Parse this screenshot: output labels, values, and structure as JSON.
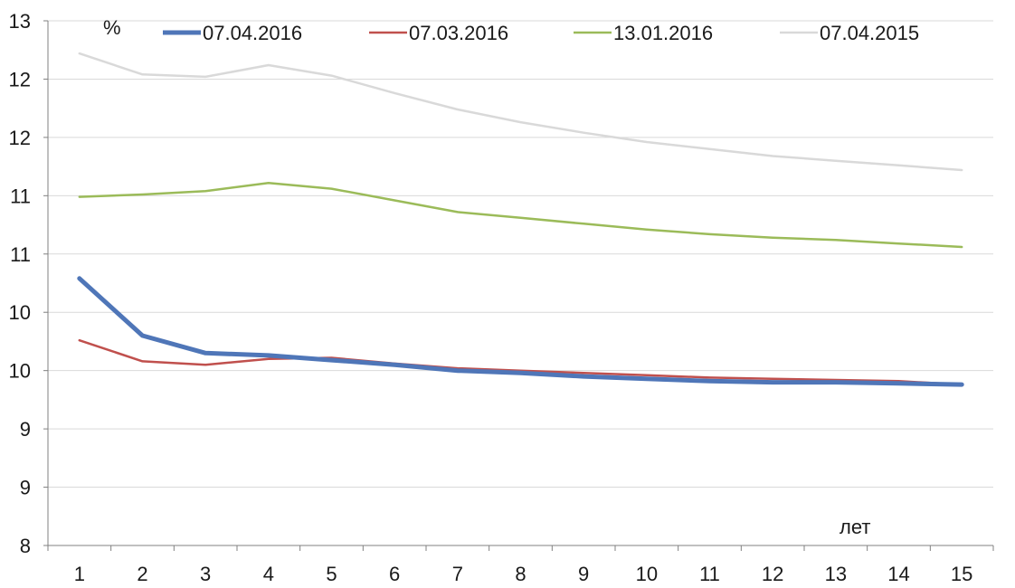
{
  "chart_data": {
    "type": "line",
    "y_unit_label": "%",
    "x_unit_label": "лет",
    "categories": [
      "1",
      "2",
      "3",
      "4",
      "5",
      "6",
      "7",
      "8",
      "9",
      "10",
      "11",
      "12",
      "13",
      "14",
      "15"
    ],
    "y_tick_labels": [
      "8",
      "9",
      "9",
      "10",
      "10",
      "11",
      "11",
      "12",
      "12",
      "13"
    ],
    "ylim": [
      8,
      12.5
    ],
    "grid": true,
    "legend_position": "top",
    "series": [
      {
        "name": "07.04.2016",
        "color": "#4f76b8",
        "width": 5,
        "values": [
          10.29,
          9.8,
          9.65,
          9.63,
          9.59,
          9.55,
          9.5,
          9.48,
          9.45,
          9.43,
          9.41,
          9.4,
          9.4,
          9.39,
          9.38
        ]
      },
      {
        "name": "07.03.2016",
        "color": "#c0504d",
        "width": 2.5,
        "values": [
          9.76,
          9.58,
          9.55,
          9.6,
          9.61,
          9.56,
          9.52,
          9.5,
          9.48,
          9.46,
          9.44,
          9.43,
          9.42,
          9.41,
          9.38
        ]
      },
      {
        "name": "13.01.2016",
        "color": "#9bbb59",
        "width": 2.5,
        "values": [
          10.99,
          11.01,
          11.04,
          11.11,
          11.06,
          10.96,
          10.86,
          10.81,
          10.76,
          10.71,
          10.67,
          10.64,
          10.62,
          10.59,
          10.56
        ]
      },
      {
        "name": "07.04.2015",
        "color": "#d9d9d9",
        "width": 2.5,
        "values": [
          12.22,
          12.04,
          12.02,
          12.12,
          12.03,
          11.88,
          11.74,
          11.63,
          11.54,
          11.46,
          11.4,
          11.34,
          11.3,
          11.26,
          11.22
        ]
      }
    ]
  }
}
